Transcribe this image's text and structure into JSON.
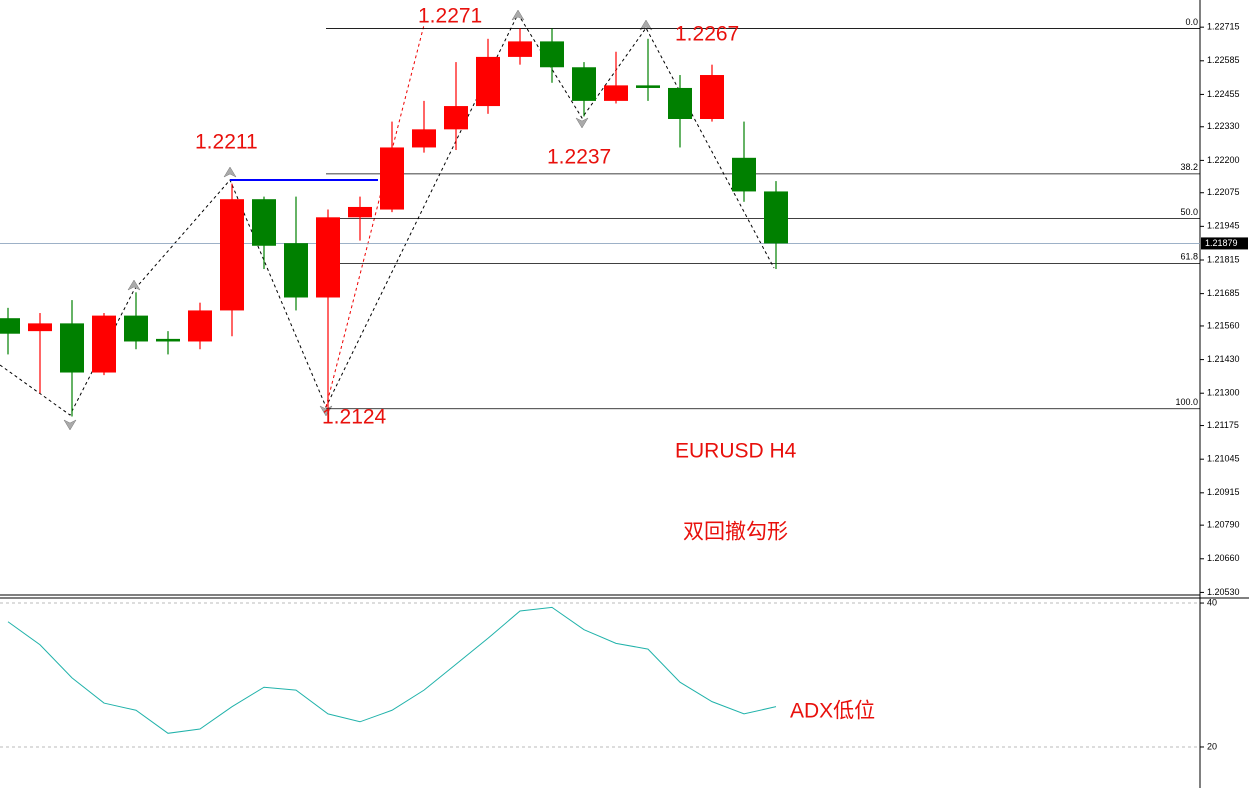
{
  "chart_data": [
    {
      "type": "candlestick",
      "open": [
        1.2159,
        1.2154,
        1.2157,
        1.2138,
        1.216,
        1.2151,
        1.215,
        1.2162,
        1.2205,
        1.2188,
        1.2167,
        1.2198,
        1.2201,
        1.2225,
        1.2232,
        1.2241,
        1.226,
        1.2266,
        1.2256,
        1.2243,
        1.2249,
        1.2248,
        1.2236,
        1.2221,
        1.2208
      ],
      "high": [
        1.2163,
        1.2161,
        1.2166,
        1.2161,
        1.2169,
        1.2154,
        1.2165,
        1.2211,
        1.2206,
        1.2206,
        1.2201,
        1.2206,
        1.2235,
        1.2243,
        1.2258,
        1.2267,
        1.2271,
        1.2271,
        1.2258,
        1.2262,
        1.2267,
        1.2253,
        1.2257,
        1.2235,
        1.2212
      ],
      "low": [
        1.2145,
        1.213,
        1.2121,
        1.2137,
        1.2147,
        1.2145,
        1.2147,
        1.2152,
        1.2178,
        1.2162,
        1.2124,
        1.2189,
        1.22,
        1.2223,
        1.2224,
        1.2238,
        1.2257,
        1.225,
        1.2237,
        1.2242,
        1.2243,
        1.2225,
        1.2235,
        1.2204,
        1.2178
      ],
      "close": [
        1.2153,
        1.2157,
        1.2138,
        1.216,
        1.215,
        1.215,
        1.2162,
        1.2205,
        1.2187,
        1.2167,
        1.2198,
        1.2202,
        1.2225,
        1.2232,
        1.2241,
        1.226,
        1.2266,
        1.2256,
        1.2243,
        1.2249,
        1.2248,
        1.2236,
        1.2253,
        1.2208,
        1.21879
      ],
      "up_color": "#ff0000",
      "down_color": "#008000",
      "ylim": [
        1.2052,
        1.2282
      ],
      "yticks": [
        1.22715,
        1.22585,
        1.22455,
        {
          "value": 1.2233,
          "label": "1.22330"
        },
        {
          "value": 1.222,
          "label": "1.22200"
        },
        1.22075,
        1.21945,
        1.21815,
        1.21685,
        {
          "value": 1.2156,
          "label": "1.21560"
        },
        {
          "value": 1.2143,
          "label": "1.21430"
        },
        {
          "value": 1.213,
          "label": "1.21300"
        },
        1.21175,
        1.21045,
        1.20915,
        {
          "value": 1.2079,
          "label": "1.20790"
        },
        {
          "value": 1.2066,
          "label": "1.20660"
        },
        {
          "value": 1.2053,
          "label": "1.20530"
        }
      ],
      "current_price": 1.21879,
      "fib_levels": [
        {
          "value": 1.2271,
          "label": "0.0"
        },
        {
          "value": 1.22148,
          "label": "38.2"
        },
        {
          "value": 1.21975,
          "label": "50.0"
        },
        {
          "value": 1.21802,
          "label": "61.8"
        },
        {
          "value": 1.2124,
          "label": "100.0"
        }
      ],
      "annotations": [
        "1.2271",
        "1.2267",
        "1.2211",
        "1.2237",
        "1.2124",
        "EURUSD H4",
        "双回撤勾形"
      ]
    },
    {
      "type": "line",
      "values": [
        37.4,
        34.2,
        29.6,
        26.1,
        25.1,
        21.9,
        22.5,
        25.6,
        28.3,
        27.9,
        24.6,
        23.5,
        25.1,
        27.9,
        31.5,
        35.1,
        38.9,
        39.4,
        36.3,
        34.4,
        33.6,
        29.0,
        26.3,
        24.6,
        25.6
      ],
      "color": "#20b2aa",
      "ylim": [
        14.3,
        40.7
      ],
      "yticks": [
        20,
        40
      ],
      "annotation": "ADX低位"
    }
  ]
}
